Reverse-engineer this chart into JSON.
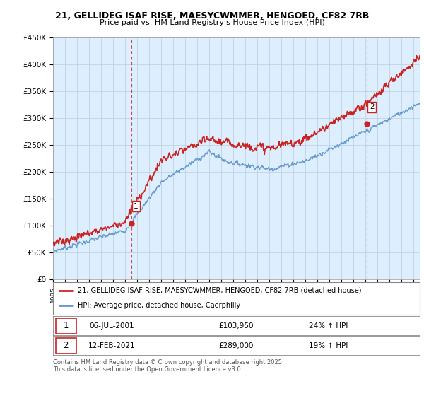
{
  "title": "21, GELLIDEG ISAF RISE, MAESYCWMMER, HENGOED, CF82 7RB",
  "subtitle": "Price paid vs. HM Land Registry's House Price Index (HPI)",
  "ylabel_ticks": [
    "£0",
    "£50K",
    "£100K",
    "£150K",
    "£200K",
    "£250K",
    "£300K",
    "£350K",
    "£400K",
    "£450K"
  ],
  "ytick_values": [
    0,
    50000,
    100000,
    150000,
    200000,
    250000,
    300000,
    350000,
    400000,
    450000
  ],
  "ylim": [
    0,
    450000
  ],
  "xlim_start": 1995.0,
  "xlim_end": 2025.5,
  "line1_color": "#cc2222",
  "line2_color": "#6699cc",
  "plot_bg_color": "#ddeeff",
  "vline_color": "#cc2222",
  "sale1_x": 2001.51,
  "sale1_y": 103950,
  "sale2_x": 2021.12,
  "sale2_y": 289000,
  "legend_line1": "21, GELLIDEG ISAF RISE, MAESYCWMMER, HENGOED, CF82 7RB (detached house)",
  "legend_line2": "HPI: Average price, detached house, Caerphilly",
  "table_row1_num": "1",
  "table_row1_date": "06-JUL-2001",
  "table_row1_price": "£103,950",
  "table_row1_hpi": "24% ↑ HPI",
  "table_row2_num": "2",
  "table_row2_date": "12-FEB-2021",
  "table_row2_price": "£289,000",
  "table_row2_hpi": "19% ↑ HPI",
  "footer": "Contains HM Land Registry data © Crown copyright and database right 2025.\nThis data is licensed under the Open Government Licence v3.0.",
  "bg_color": "#ffffff",
  "grid_color": "#bbccdd"
}
